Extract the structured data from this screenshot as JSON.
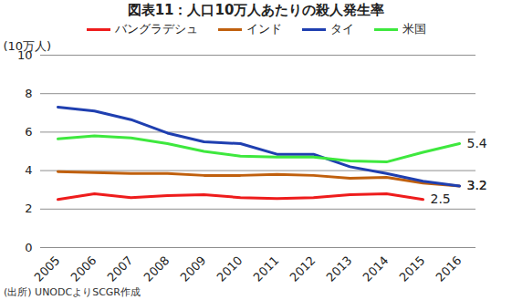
{
  "chart_data": {
    "type": "line",
    "title": "図表11：人口10万人あたりの殺人発生率",
    "y_label": "(10万人)",
    "source": "(出所) UNODCよりSCGR作成",
    "categories": [
      "2005",
      "2006",
      "2007",
      "2008",
      "2009",
      "2010",
      "2011",
      "2012",
      "2013",
      "2014",
      "2015",
      "2016"
    ],
    "series": [
      {
        "name": "バングラデシュ",
        "color": "#ee1c1c",
        "values": [
          2.5,
          2.8,
          2.6,
          2.7,
          2.75,
          2.6,
          2.55,
          2.6,
          2.75,
          2.8,
          2.5,
          null
        ]
      },
      {
        "name": "インド",
        "color": "#c0600e",
        "values": [
          3.95,
          3.9,
          3.85,
          3.85,
          3.75,
          3.75,
          3.8,
          3.75,
          3.6,
          3.65,
          3.35,
          3.2
        ]
      },
      {
        "name": "タイ",
        "color": "#1f3fb0",
        "values": [
          7.3,
          7.1,
          6.65,
          5.95,
          5.5,
          5.4,
          4.85,
          4.85,
          4.2,
          3.85,
          3.45,
          3.2
        ]
      },
      {
        "name": "米国",
        "color": "#3ee83e",
        "values": [
          5.65,
          5.8,
          5.7,
          5.4,
          5.0,
          4.75,
          4.7,
          4.7,
          4.5,
          4.45,
          4.95,
          5.4
        ]
      }
    ],
    "annotations": [
      {
        "text": "5.4",
        "series": "米国"
      },
      {
        "text": "3.2",
        "series": "インド"
      },
      {
        "text": "3.2",
        "series": "タイ"
      },
      {
        "text": "2.5",
        "series": "バングラデシュ"
      }
    ],
    "ylim": [
      0,
      10
    ],
    "yticks": [
      0,
      2,
      4,
      6,
      8,
      10
    ],
    "grid": true,
    "legend": "top"
  }
}
